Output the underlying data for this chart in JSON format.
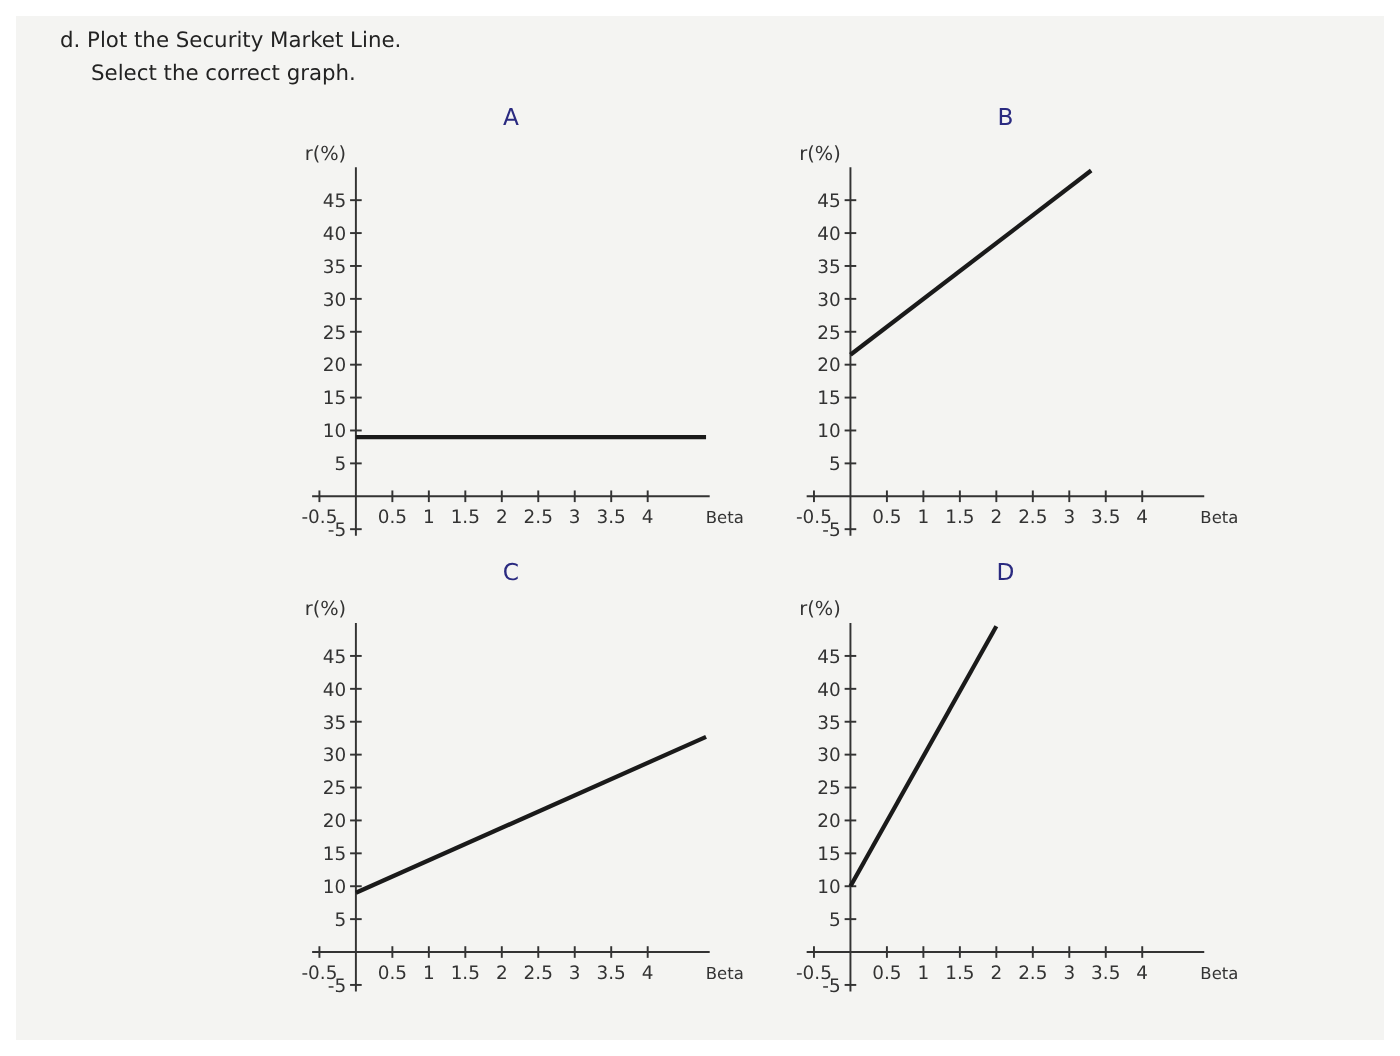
{
  "chart_data": [
    {
      "type": "line",
      "title": "A",
      "annotations": [
        "d. Plot the Security Market Line.",
        "Select the correct graph."
      ],
      "xlabel": "Beta",
      "ylabel": "r(%)",
      "xlim": [
        -0.6,
        4.85
      ],
      "ylim": [
        -6,
        50
      ],
      "xticks": [
        -0.5,
        0.5,
        1,
        1.5,
        2,
        2.5,
        3,
        3.5,
        4
      ],
      "yticks": [
        -5,
        5,
        10,
        15,
        20,
        25,
        30,
        35,
        40,
        45
      ],
      "grid": false,
      "marker": "none",
      "series": [
        {
          "color": "#1a1a1a",
          "x": [
            0,
            4.8
          ],
          "values": [
            9,
            9
          ]
        }
      ]
    },
    {
      "type": "line",
      "title": "B",
      "xlabel": "Beta",
      "ylabel": "r(%)",
      "xlim": [
        -0.6,
        4.85
      ],
      "ylim": [
        -6,
        50
      ],
      "xticks": [
        -0.5,
        0.5,
        1,
        1.5,
        2,
        2.5,
        3,
        3.5,
        4
      ],
      "yticks": [
        -5,
        5,
        10,
        15,
        20,
        25,
        30,
        35,
        40,
        45
      ],
      "grid": false,
      "marker": "none",
      "series": [
        {
          "color": "#1a1a1a",
          "x": [
            0,
            3.3
          ],
          "values": [
            21.5,
            49.5
          ]
        }
      ]
    },
    {
      "type": "line",
      "title": "C",
      "xlabel": "Beta",
      "ylabel": "r(%)",
      "xlim": [
        -0.6,
        4.85
      ],
      "ylim": [
        -6,
        50
      ],
      "xticks": [
        -0.5,
        0.5,
        1,
        1.5,
        2,
        2.5,
        3,
        3.5,
        4
      ],
      "yticks": [
        -5,
        5,
        10,
        15,
        20,
        25,
        30,
        35,
        40,
        45
      ],
      "grid": false,
      "marker": "none",
      "series": [
        {
          "color": "#1a1a1a",
          "x": [
            0,
            4.8
          ],
          "values": [
            9,
            32.7
          ]
        }
      ]
    },
    {
      "type": "line",
      "title": "D",
      "xlabel": "Beta",
      "ylabel": "r(%)",
      "xlim": [
        -0.6,
        4.85
      ],
      "ylim": [
        -6,
        50
      ],
      "xticks": [
        -0.5,
        0.5,
        1,
        1.5,
        2,
        2.5,
        3,
        3.5,
        4
      ],
      "yticks": [
        -5,
        5,
        10,
        15,
        20,
        25,
        30,
        35,
        40,
        45
      ],
      "grid": false,
      "marker": "none",
      "series": [
        {
          "color": "#1a1a1a",
          "x": [
            0,
            2
          ],
          "values": [
            10,
            49.5
          ]
        }
      ]
    }
  ]
}
